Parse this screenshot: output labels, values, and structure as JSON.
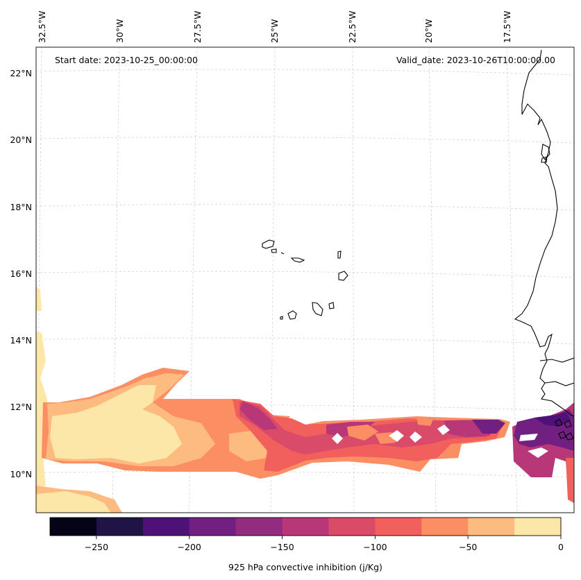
{
  "map": {
    "start_date": "Start date: 2023-10-25_00:00:00",
    "valid_date": "Valid_date: 2023-10-26T10:00:00.00",
    "lon_labels": [
      "32.5°W",
      "30°W",
      "27.5°W",
      "25°W",
      "22.5°W",
      "20°W",
      "17.5°W"
    ],
    "lat_labels": [
      "22°N",
      "20°N",
      "18°N",
      "16°N",
      "14°N",
      "12°N",
      "10°N"
    ]
  },
  "colorbar": {
    "label": "925 hPa convective inhibition (j/Kg)",
    "tick_labels": [
      "−250",
      "−200",
      "−150",
      "−100",
      "−50",
      "0"
    ],
    "range": [
      -275,
      0
    ],
    "levels": [
      -275,
      -250,
      -225,
      -200,
      -175,
      -150,
      -125,
      -100,
      -75,
      -50,
      -25,
      0
    ],
    "colors": [
      "#050316",
      "#1f1445",
      "#4e1178",
      "#711f81",
      "#932b80",
      "#b73779",
      "#da4b6a",
      "#f1605d",
      "#fc8e64",
      "#febb80",
      "#fde7a8"
    ]
  }
}
